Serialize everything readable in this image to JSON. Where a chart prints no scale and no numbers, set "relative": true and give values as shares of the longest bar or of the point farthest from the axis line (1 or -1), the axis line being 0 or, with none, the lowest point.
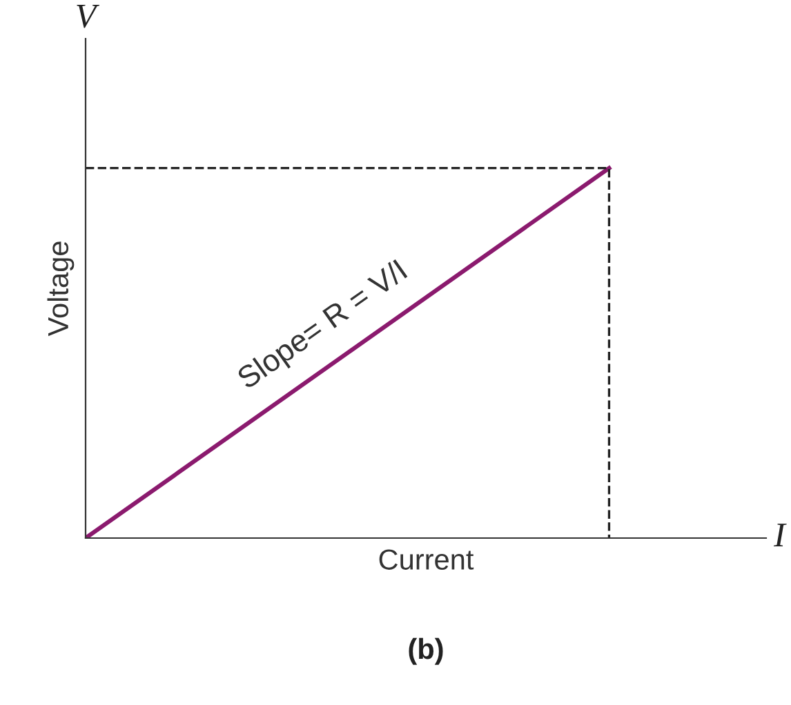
{
  "chart_data": {
    "type": "line",
    "relative": true,
    "xlabel": "Current",
    "ylabel": "Voltage",
    "categories": [
      null,
      null
    ],
    "series": [
      {
        "color": "#8b1a6e",
        "values": [
          0,
          1
        ]
      }
    ],
    "ref_lines": [
      {
        "axis": "y",
        "value": 1,
        "line_style": "dashed",
        "color": "#222222"
      }
    ],
    "annotations": [
      "Slope= R = V/I",
      "V",
      "I",
      "(b)"
    ],
    "legend": false
  }
}
